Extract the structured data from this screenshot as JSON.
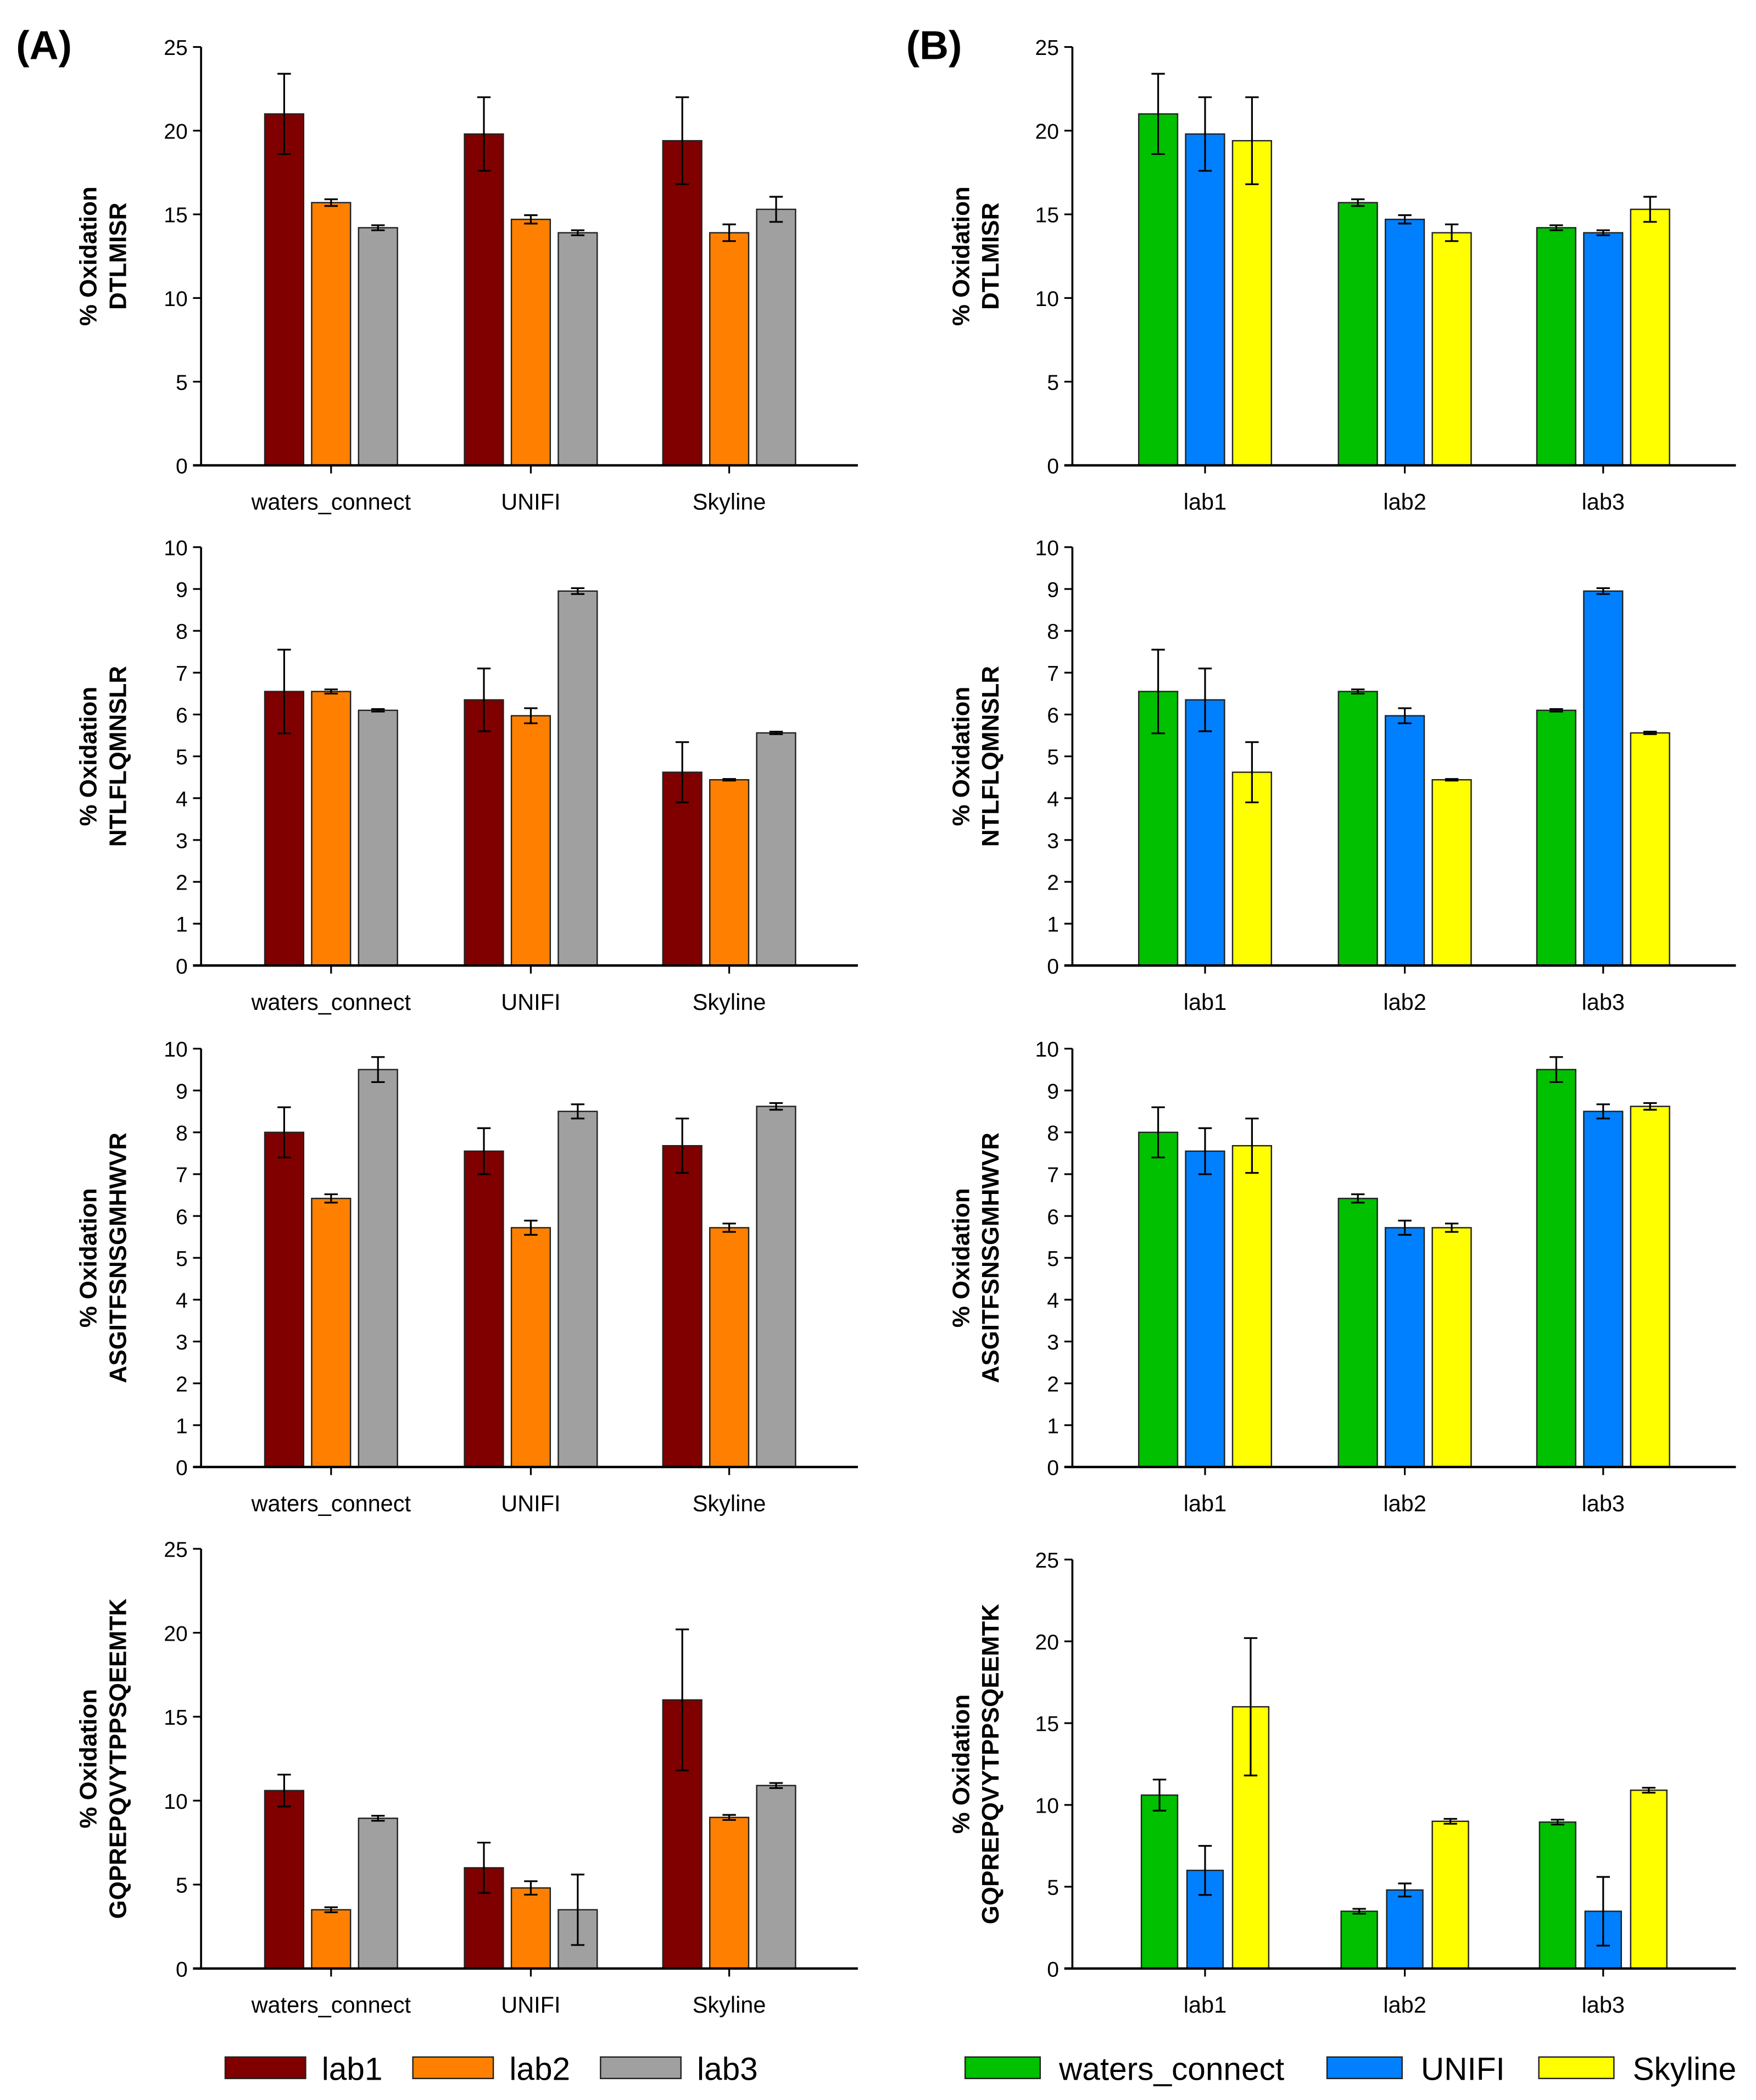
{
  "panels": [
    {
      "label": "(A)"
    },
    {
      "label": "(B)"
    }
  ],
  "legends": [
    {
      "entries": [
        {
          "name": "lab1",
          "color": "#800000"
        },
        {
          "name": "lab2",
          "color": "#FF8000"
        },
        {
          "name": "lab3",
          "color": "#A0A0A0"
        }
      ]
    },
    {
      "entries": [
        {
          "name": "waters_connect",
          "color": "#00C000"
        },
        {
          "name": "UNIFI",
          "color": "#0080FF"
        },
        {
          "name": "Skyline",
          "color": "#FFFF00"
        }
      ]
    }
  ],
  "chart_data": [
    {
      "type": "bar",
      "panel": "A",
      "ylabel": [
        "% Oxidation",
        "DTLMISR"
      ],
      "ylim": [
        0,
        25
      ],
      "yticks": [
        0,
        5,
        10,
        15,
        20,
        25
      ],
      "categories": [
        "waters_connect",
        "UNIFI",
        "Skyline"
      ],
      "series": [
        {
          "name": "lab1",
          "values": [
            21.0,
            19.8,
            19.4
          ],
          "errors": [
            2.4,
            2.2,
            2.6
          ]
        },
        {
          "name": "lab2",
          "values": [
            15.7,
            14.7,
            13.9
          ],
          "errors": [
            0.2,
            0.25,
            0.5
          ]
        },
        {
          "name": "lab3",
          "values": [
            14.2,
            13.9,
            15.3
          ],
          "errors": [
            0.15,
            0.15,
            0.75
          ]
        }
      ]
    },
    {
      "type": "bar",
      "panel": "A",
      "ylabel": [
        "% Oxidation",
        "NTLFLQMNSLR"
      ],
      "ylim": [
        0,
        10
      ],
      "yticks": [
        0,
        1,
        2,
        3,
        4,
        5,
        6,
        7,
        8,
        9,
        10
      ],
      "categories": [
        "waters_connect",
        "UNIFI",
        "Skyline"
      ],
      "series": [
        {
          "name": "lab1",
          "values": [
            6.55,
            6.35,
            4.62
          ],
          "errors": [
            1.0,
            0.75,
            0.72
          ]
        },
        {
          "name": "lab2",
          "values": [
            6.55,
            5.97,
            4.44
          ],
          "errors": [
            0.05,
            0.18,
            0.02
          ]
        },
        {
          "name": "lab3",
          "values": [
            6.1,
            8.95,
            5.56
          ],
          "errors": [
            0.03,
            0.07,
            0.03
          ]
        }
      ]
    },
    {
      "type": "bar",
      "panel": "A",
      "ylabel": [
        "% Oxidation",
        "ASGITFSNSGMHWVR"
      ],
      "ylim": [
        0,
        10
      ],
      "yticks": [
        0,
        1,
        2,
        3,
        4,
        5,
        6,
        7,
        8,
        9,
        10
      ],
      "categories": [
        "waters_connect",
        "UNIFI",
        "Skyline"
      ],
      "series": [
        {
          "name": "lab1",
          "values": [
            8.0,
            7.55,
            7.68
          ],
          "errors": [
            0.6,
            0.55,
            0.65
          ]
        },
        {
          "name": "lab2",
          "values": [
            6.42,
            5.72,
            5.72
          ],
          "errors": [
            0.1,
            0.17,
            0.1
          ]
        },
        {
          "name": "lab3",
          "values": [
            9.5,
            8.5,
            8.62
          ],
          "errors": [
            0.3,
            0.17,
            0.08
          ]
        }
      ]
    },
    {
      "type": "bar",
      "panel": "A",
      "ylabel": [
        "% Oxidation",
        "GQPREPQVYTPPSQEEMTK"
      ],
      "ylim": [
        0,
        25
      ],
      "yticks": [
        0,
        5,
        10,
        15,
        20,
        25
      ],
      "categories": [
        "waters_connect",
        "UNIFI",
        "Skyline"
      ],
      "series": [
        {
          "name": "lab1",
          "values": [
            10.6,
            6.0,
            16.0
          ],
          "errors": [
            0.95,
            1.5,
            4.2
          ]
        },
        {
          "name": "lab2",
          "values": [
            3.5,
            4.8,
            9.0
          ],
          "errors": [
            0.15,
            0.4,
            0.15
          ]
        },
        {
          "name": "lab3",
          "values": [
            8.95,
            3.5,
            10.9
          ],
          "errors": [
            0.15,
            2.1,
            0.15
          ]
        }
      ]
    },
    {
      "type": "bar",
      "panel": "B",
      "ylabel": [
        "% Oxidation",
        "DTLMISR"
      ],
      "ylim": [
        0,
        25
      ],
      "yticks": [
        0,
        5,
        10,
        15,
        20,
        25
      ],
      "categories": [
        "lab1",
        "lab2",
        "lab3"
      ],
      "series": [
        {
          "name": "waters_connect",
          "values": [
            21.0,
            15.7,
            14.2
          ],
          "errors": [
            2.4,
            0.2,
            0.15
          ]
        },
        {
          "name": "UNIFI",
          "values": [
            19.8,
            14.7,
            13.9
          ],
          "errors": [
            2.2,
            0.25,
            0.15
          ]
        },
        {
          "name": "Skyline",
          "values": [
            19.4,
            13.9,
            15.3
          ],
          "errors": [
            2.6,
            0.5,
            0.75
          ]
        }
      ]
    },
    {
      "type": "bar",
      "panel": "B",
      "ylabel": [
        "% Oxidation",
        "NTLFLQMNSLR"
      ],
      "ylim": [
        0,
        10
      ],
      "yticks": [
        0,
        1,
        2,
        3,
        4,
        5,
        6,
        7,
        8,
        9,
        10
      ],
      "categories": [
        "lab1",
        "lab2",
        "lab3"
      ],
      "series": [
        {
          "name": "waters_connect",
          "values": [
            6.55,
            6.55,
            6.1
          ],
          "errors": [
            1.0,
            0.05,
            0.03
          ]
        },
        {
          "name": "UNIFI",
          "values": [
            6.35,
            5.97,
            8.95
          ],
          "errors": [
            0.75,
            0.18,
            0.07
          ]
        },
        {
          "name": "Skyline",
          "values": [
            4.62,
            4.44,
            5.56
          ],
          "errors": [
            0.72,
            0.02,
            0.03
          ]
        }
      ]
    },
    {
      "type": "bar",
      "panel": "B",
      "ylabel": [
        "% Oxidation",
        "ASGITFSNSGMHWVR"
      ],
      "ylim": [
        0,
        10
      ],
      "yticks": [
        0,
        1,
        2,
        3,
        4,
        5,
        6,
        7,
        8,
        9,
        10
      ],
      "categories": [
        "lab1",
        "lab2",
        "lab3"
      ],
      "series": [
        {
          "name": "waters_connect",
          "values": [
            8.0,
            6.42,
            9.5
          ],
          "errors": [
            0.6,
            0.1,
            0.3
          ]
        },
        {
          "name": "UNIFI",
          "values": [
            7.55,
            5.72,
            8.5
          ],
          "errors": [
            0.55,
            0.17,
            0.17
          ]
        },
        {
          "name": "Skyline",
          "values": [
            7.68,
            5.72,
            8.62
          ],
          "errors": [
            0.65,
            0.1,
            0.08
          ]
        }
      ]
    },
    {
      "type": "bar",
      "panel": "B",
      "ylabel": [
        "% Oxidation",
        "GQPREPQVYTPPSQEEMTK"
      ],
      "ylim": [
        0,
        25
      ],
      "yticks": [
        0,
        5,
        10,
        15,
        20,
        25
      ],
      "categories": [
        "lab1",
        "lab2",
        "lab3"
      ],
      "series": [
        {
          "name": "waters_connect",
          "values": [
            10.6,
            3.5,
            8.95
          ],
          "errors": [
            0.95,
            0.15,
            0.15
          ]
        },
        {
          "name": "UNIFI",
          "values": [
            6.0,
            4.8,
            3.5
          ],
          "errors": [
            1.5,
            0.4,
            2.1
          ]
        },
        {
          "name": "Skyline",
          "values": [
            16.0,
            9.0,
            10.9
          ],
          "errors": [
            4.2,
            0.15,
            0.15
          ]
        }
      ]
    }
  ]
}
